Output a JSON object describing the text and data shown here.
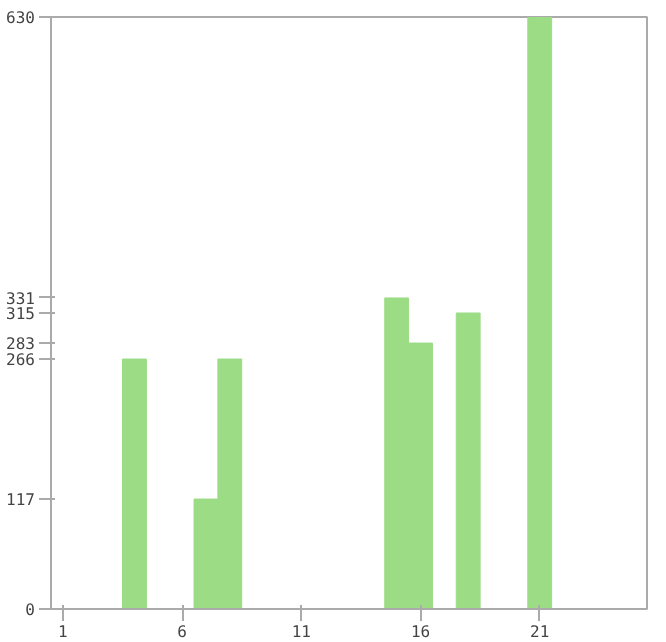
{
  "chart_data": {
    "type": "bar",
    "x": [
      1,
      2,
      3,
      4,
      5,
      6,
      7,
      8,
      9,
      10,
      11,
      12,
      13,
      14,
      15,
      16,
      17,
      18,
      19,
      20,
      21,
      22,
      23,
      24,
      25
    ],
    "values": [
      0,
      0,
      0,
      266,
      0,
      0,
      117,
      266,
      0,
      0,
      0,
      0,
      0,
      0,
      331,
      283,
      0,
      315,
      0,
      0,
      630,
      0,
      0,
      0,
      0
    ],
    "color": "#9bdc85",
    "xlim": [
      0.5,
      25.5
    ],
    "xticks": [
      1,
      6,
      11,
      16,
      21
    ],
    "ylim": [
      0,
      630
    ],
    "yticks": [
      0,
      117,
      266,
      283,
      315,
      331,
      630
    ],
    "grid": false
  }
}
